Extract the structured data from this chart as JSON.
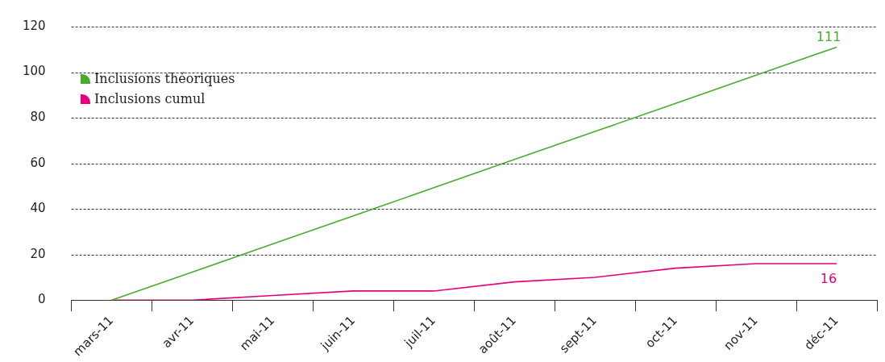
{
  "chart_data": {
    "type": "line",
    "categories": [
      "mars-11",
      "avr-11",
      "mai-11",
      "juin-11",
      "juil-11",
      "août-11",
      "sept-11",
      "oct-11",
      "nov-11",
      "déc-11"
    ],
    "series": [
      {
        "name": "Inclusions théoriques",
        "color": "#4aab2e",
        "values": [
          0,
          12.3,
          24.7,
          37,
          49.3,
          61.7,
          74,
          86.3,
          98.7,
          111
        ],
        "value_labels": [
          null,
          null,
          null,
          null,
          null,
          null,
          null,
          null,
          null,
          "111"
        ]
      },
      {
        "name": "Inclusions cumul",
        "color": "#e6007e",
        "values": [
          0,
          0,
          2,
          4,
          4,
          8,
          10,
          14,
          16,
          16
        ],
        "value_labels": [
          null,
          null,
          null,
          null,
          null,
          null,
          null,
          null,
          null,
          "16"
        ]
      }
    ],
    "ylim": [
      0,
      120
    ],
    "yticks": [
      0,
      20,
      40,
      60,
      80,
      100,
      120
    ],
    "grid": "y",
    "legend": "top left",
    "marker": "none",
    "line_style": "solid"
  }
}
